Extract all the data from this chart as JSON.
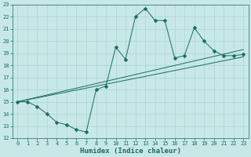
{
  "xlabel": "Humidex (Indice chaleur)",
  "bg_color": "#c8e8e8",
  "line_color": "#1a6b5a",
  "xlim": [
    -0.5,
    23.5
  ],
  "ylim": [
    12,
    23
  ],
  "xticks": [
    0,
    1,
    2,
    3,
    4,
    5,
    6,
    7,
    8,
    9,
    10,
    11,
    12,
    13,
    14,
    15,
    16,
    17,
    18,
    19,
    20,
    21,
    22,
    23
  ],
  "yticks": [
    12,
    13,
    14,
    15,
    16,
    17,
    18,
    19,
    20,
    21,
    22,
    23
  ],
  "line1_x": [
    0,
    1,
    2,
    3,
    4,
    5,
    6,
    7,
    8,
    9,
    10,
    11,
    12,
    13,
    14,
    15,
    16,
    17,
    18,
    19,
    20,
    21,
    22,
    23
  ],
  "line1_y": [
    15,
    15,
    14.6,
    14.0,
    13.3,
    13.1,
    12.7,
    12.5,
    16.0,
    16.3,
    19.5,
    18.5,
    22.0,
    22.7,
    21.7,
    21.7,
    18.6,
    18.8,
    21.1,
    20.0,
    19.2,
    18.8,
    18.8,
    18.9
  ],
  "line2_x": [
    0,
    23
  ],
  "line2_y": [
    15.0,
    19.3
  ],
  "line3_x": [
    0,
    23
  ],
  "line3_y": [
    15.0,
    18.7
  ],
  "grid_color": "#a8d8d0",
  "markersize": 2.5,
  "tick_fontsize": 5.0,
  "xlabel_fontsize": 6.5
}
